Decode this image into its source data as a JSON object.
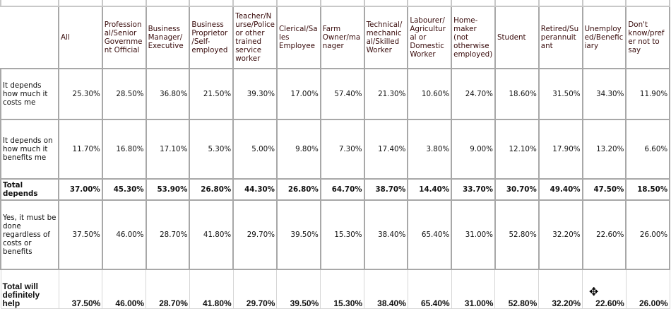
{
  "columns": [
    "All",
    "Professional/Senior Government Official",
    "Business Manager/ Executive",
    "Business Proprietor /Self-employed",
    "Teacher/Nurse/Police or other trained service worker",
    "Clerical/Sales Employee",
    "Farm Owner/manager",
    "Technical/mechanical/Skilled Worker",
    "Labourer/Agricultural or Domestic Worker",
    "Home-maker (not otherwise employed)",
    "Student",
    "Retired/Superannuitant",
    "Unemployed/Beneficiary",
    "Don't know/prefer not to say"
  ],
  "rows": [
    {
      "label": "It depends how much it costs me",
      "bold": false,
      "values": [
        "25.30%",
        "28.50%",
        "36.80%",
        "21.50%",
        "39.30%",
        "17.00%",
        "57.40%",
        "21.30%",
        "10.60%",
        "24.70%",
        "18.60%",
        "31.50%",
        "34.30%",
        "11.90%"
      ]
    },
    {
      "label": "It depends on how much it benefits me",
      "bold": false,
      "values": [
        "11.70%",
        "16.80%",
        "17.10%",
        "5.30%",
        "5.00%",
        "9.80%",
        "7.30%",
        "17.40%",
        "3.80%",
        "9.00%",
        "12.10%",
        "17.90%",
        "13.20%",
        "6.60%"
      ]
    },
    {
      "label": "Total depends",
      "bold": true,
      "values": [
        "37.00%",
        "45.30%",
        "53.90%",
        "26.80%",
        "44.30%",
        "26.80%",
        "64.70%",
        "38.70%",
        "14.40%",
        "33.70%",
        "30.70%",
        "49.40%",
        "47.50%",
        "18.50%"
      ]
    },
    {
      "label": "Yes, it must be done regardless of costs or benefits",
      "bold": false,
      "values": [
        "37.50%",
        "46.00%",
        "28.70%",
        "41.80%",
        "29.70%",
        "39.50%",
        "15.30%",
        "38.40%",
        "65.40%",
        "31.00%",
        "52.80%",
        "32.20%",
        "22.60%",
        "26.00%"
      ]
    },
    {
      "label": "Total will definitely help",
      "bold": true,
      "values": [
        "37.50%",
        "46.00%",
        "28.70%",
        "41.80%",
        "29.70%",
        "39.50%",
        "15.30%",
        "38.40%",
        "65.40%",
        "31.00%",
        "52.80%",
        "32.20%",
        "22.60%",
        "26.00%"
      ]
    }
  ],
  "cursor_icon": "move-cursor-icon"
}
